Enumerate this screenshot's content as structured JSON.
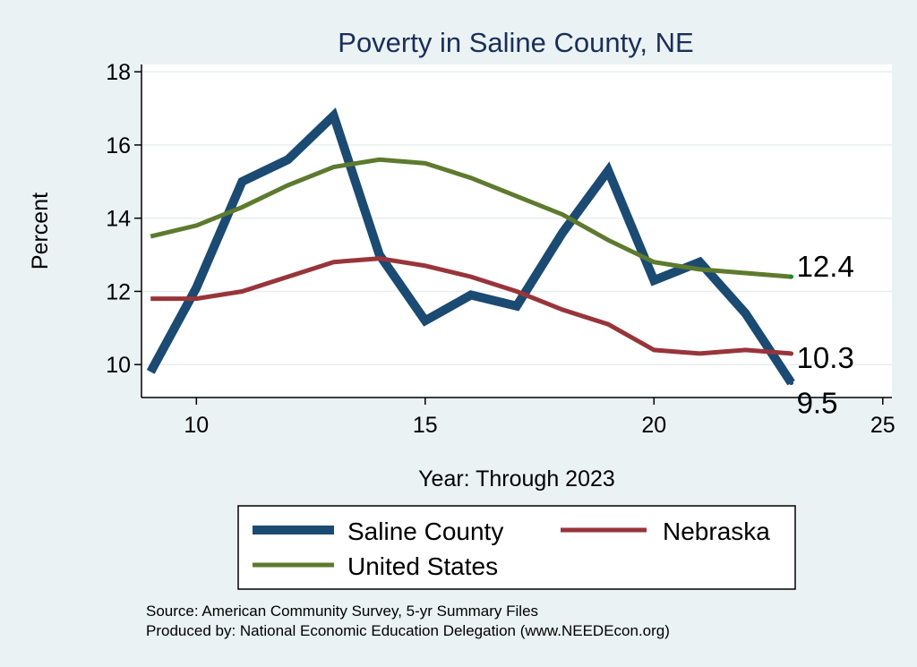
{
  "chart_data": {
    "type": "line",
    "title": "Poverty in Saline County, NE",
    "xlabel": "Year: Through 2023",
    "ylabel": "Percent",
    "xlim": [
      8.8,
      25.2
    ],
    "ylim": [
      9.1,
      18.2
    ],
    "xticks": [
      10,
      15,
      20,
      25
    ],
    "yticks": [
      10,
      12,
      14,
      16,
      18
    ],
    "grid": true,
    "legend_position": "bottom",
    "x": [
      9,
      10,
      11,
      12,
      13,
      14,
      15,
      16,
      17,
      18,
      19,
      20,
      21,
      22,
      23
    ],
    "series": [
      {
        "name": "Saline County",
        "color": "#1b4a72",
        "values": [
          9.8,
          12.1,
          15.0,
          15.6,
          16.8,
          13.0,
          11.2,
          11.9,
          11.6,
          13.6,
          15.3,
          12.3,
          12.8,
          11.4,
          9.5
        ],
        "end_label": "9.5"
      },
      {
        "name": "Nebraska",
        "color": "#98353a",
        "values": [
          11.8,
          11.8,
          12.0,
          12.4,
          12.8,
          12.9,
          12.7,
          12.4,
          12.0,
          11.5,
          11.1,
          10.4,
          10.3,
          10.4,
          10.3
        ],
        "end_label": "10.3"
      },
      {
        "name": "United States",
        "color": "#5d7a2e",
        "values": [
          13.5,
          13.8,
          14.3,
          14.9,
          15.4,
          15.6,
          15.5,
          15.1,
          14.6,
          14.1,
          13.4,
          12.8,
          12.6,
          12.5,
          12.4
        ],
        "end_label": "12.4"
      }
    ],
    "notes": [
      "Source: American Community Survey, 5-yr Summary Files",
      "Produced by: National Economic Education Delegation (www.NEEDEcon.org)"
    ]
  }
}
